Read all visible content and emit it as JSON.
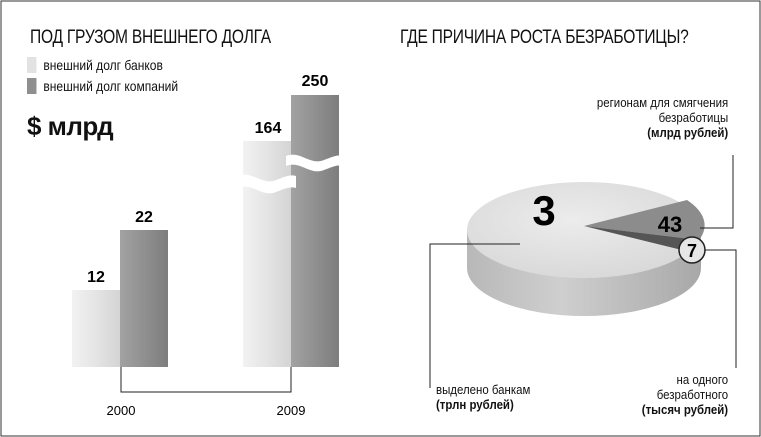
{
  "colors": {
    "bank": "#e2e2e2",
    "company": "#8f8f8f",
    "line": "#222222"
  },
  "chart_data": [
    {
      "type": "bar",
      "title": "ПОД ГРУЗОМ ВНЕШНЕГО ДОЛГА",
      "ylabel": "$ млрд",
      "categories": [
        "2000",
        "2009"
      ],
      "series": [
        {
          "name": "внешний долг банков",
          "values": [
            12,
            164
          ]
        },
        {
          "name": "внешний долг компаний",
          "values": [
            22,
            250
          ]
        }
      ],
      "axis_break": true
    },
    {
      "type": "pie",
      "title": "ГДЕ ПРИЧИНА РОСТА БЕЗРАБОТИЦЫ?",
      "slices": [
        {
          "value_label": "3",
          "label": "выделено банкам",
          "unit": "(трлн рублей)"
        },
        {
          "value_label": "43",
          "label": "регионам для смягчения безработицы",
          "unit": "(млрд рублей)"
        },
        {
          "value_label": "7",
          "label": "на одного безработного",
          "unit": "(тысяч рублей)"
        }
      ]
    }
  ],
  "text": {
    "left_title": "ПОД ГРУЗОМ ВНЕШНЕГО ДОЛГА",
    "right_title": "ГДЕ ПРИЧИНА РОСТА БЕЗРАБОТИЦЫ?",
    "legend_banks": "внешний долг банков",
    "legend_companies": "внешний долг компаний",
    "unit": "$ млрд",
    "regions_line1": "регионам для смягчения",
    "regions_line2": "безработицы",
    "regions_unit": "(млрд рублей)",
    "banks_label": "выделено банкам",
    "banks_unit": "(трлн рублей)",
    "unemployed_line1": "на одного",
    "unemployed_line2": "безработного",
    "unemployed_unit": "(тысяч рублей)"
  }
}
